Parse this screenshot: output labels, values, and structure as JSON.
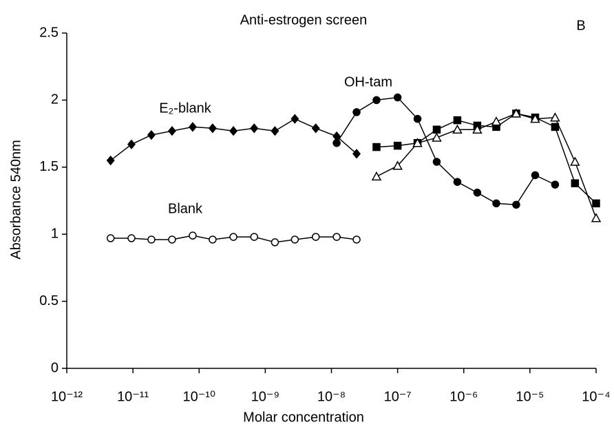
{
  "chart_data": {
    "type": "line",
    "title": "Anti-estrogen screen",
    "panel_label": "B",
    "x_label": "Molar concentration",
    "y_label": "Absorbance 540nm",
    "x_scale": "log",
    "xlim": [
      1e-12,
      0.0001
    ],
    "xticks": [
      {
        "value": 1e-12,
        "label": "10⁻¹²"
      },
      {
        "value": 1e-11,
        "label": "10⁻¹¹"
      },
      {
        "value": 1e-10,
        "label": "10⁻¹⁰"
      },
      {
        "value": 1e-09,
        "label": "10⁻⁹"
      },
      {
        "value": 1e-08,
        "label": "10⁻⁸"
      },
      {
        "value": 1e-07,
        "label": "10⁻⁷"
      },
      {
        "value": 1e-06,
        "label": "10⁻⁶"
      },
      {
        "value": 1e-05,
        "label": "10⁻⁵"
      },
      {
        "value": 0.0001,
        "label": "10⁻⁴"
      }
    ],
    "ylim": [
      0,
      2.5
    ],
    "yticks": [
      0,
      0.5,
      1,
      1.5,
      2,
      2.5
    ],
    "grid": false,
    "series": [
      {
        "name": "Blank",
        "color": "#000000",
        "marker": "circle-open",
        "x": [
          4.6e-12,
          9.5e-12,
          1.9e-11,
          3.9e-11,
          8e-11,
          1.6e-10,
          3.3e-10,
          6.8e-10,
          1.4e-09,
          2.8e-09,
          5.8e-09,
          1.2e-08,
          2.4e-08
        ],
        "values": [
          0.97,
          0.97,
          0.96,
          0.96,
          0.99,
          0.96,
          0.98,
          0.98,
          0.94,
          0.96,
          0.98,
          0.98,
          0.96
        ]
      },
      {
        "name": "E₂-blank",
        "color": "#000000",
        "marker": "diamond",
        "x": [
          4.6e-12,
          9.5e-12,
          1.9e-11,
          3.9e-11,
          8e-11,
          1.6e-10,
          3.3e-10,
          6.8e-10,
          1.4e-09,
          2.8e-09,
          5.8e-09,
          1.2e-08,
          2.4e-08
        ],
        "values": [
          1.55,
          1.67,
          1.74,
          1.77,
          1.8,
          1.79,
          1.77,
          1.79,
          1.77,
          1.86,
          1.79,
          1.73,
          1.6
        ]
      },
      {
        "name": "OH-tam",
        "color": "#000000",
        "marker": "circle",
        "x": [
          1.2e-08,
          2.4e-08,
          4.8e-08,
          1e-07,
          2e-07,
          3.9e-07,
          8e-07,
          1.6e-06,
          3.1e-06,
          6.2e-06,
          1.2e-05,
          2.4e-05
        ],
        "values": [
          1.68,
          1.91,
          2.0,
          2.02,
          1.86,
          1.54,
          1.39,
          1.31,
          1.23,
          1.22,
          1.44,
          1.37
        ]
      },
      {
        "color": "#000000",
        "marker": "square",
        "x": [
          4.8e-08,
          1e-07,
          2e-07,
          3.9e-07,
          8e-07,
          1.6e-06,
          3.1e-06,
          6.2e-06,
          1.2e-05,
          2.4e-05,
          4.8e-05,
          0.0001
        ],
        "values": [
          1.65,
          1.66,
          1.68,
          1.78,
          1.85,
          1.81,
          1.8,
          1.9,
          1.87,
          1.8,
          1.38,
          1.23
        ]
      },
      {
        "color": "#000000",
        "marker": "triangle-open",
        "x": [
          4.8e-08,
          1e-07,
          2e-07,
          3.9e-07,
          8e-07,
          1.6e-06,
          3.1e-06,
          6.2e-06,
          1.2e-05,
          2.4e-05,
          4.8e-05,
          0.0001
        ],
        "values": [
          1.43,
          1.51,
          1.68,
          1.72,
          1.78,
          1.78,
          1.84,
          1.9,
          1.86,
          1.87,
          1.54,
          1.12
        ]
      }
    ]
  }
}
